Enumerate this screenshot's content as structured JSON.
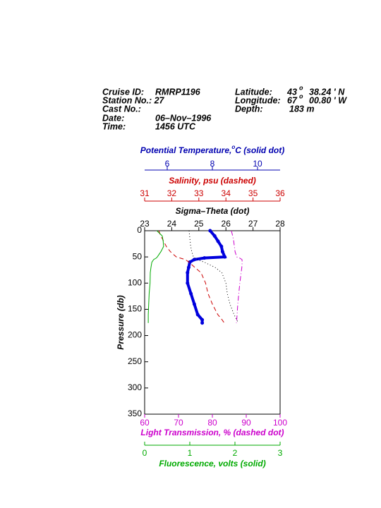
{
  "header": {
    "cruise_label": "Cruise ID:",
    "cruise": "RMRP1196",
    "station": "Station No.: 27",
    "cast_label": "Cast No.:",
    "date_label": "Date:",
    "date": "06–Nov–1996",
    "time_label": "Time:",
    "time": "1456 UTC",
    "lat_label": "Latitude:",
    "lat_deg": "43",
    "lat_sup": "o",
    "lat_min": "38.24 ' N",
    "lon_label": "Longitude:",
    "lon_deg": "67",
    "lon_sup": "o",
    "lon_min": "00.80 ' W",
    "depth_label": "Depth:",
    "depth": "183 m"
  },
  "chart_data": {
    "type": "profile",
    "ylabel": "Pressure (db)",
    "ylim": [
      0,
      350
    ],
    "yticks": [
      0,
      50,
      100,
      150,
      200,
      250,
      300,
      350
    ],
    "pressure": [
      0,
      10,
      20,
      30,
      40,
      50,
      52,
      55,
      60,
      70,
      80,
      100,
      120,
      140,
      160,
      170,
      176
    ],
    "axes": [
      {
        "title": [
          "Potential Temperature,",
          "o",
          "C (solid dot)"
        ],
        "color": "#0000b0",
        "line_color": "#0000dd",
        "dash": "solid-dot",
        "xlim": [
          5,
          11
        ],
        "xticks": [
          6,
          8,
          10
        ],
        "values": [
          7.9,
          8.1,
          8.25,
          8.4,
          8.45,
          8.55,
          7.65,
          7.2,
          7.0,
          6.95,
          6.9,
          6.9,
          7.05,
          7.2,
          7.35,
          7.55,
          7.55
        ]
      },
      {
        "title": "Salinity, psu  (dashed)",
        "color": "#cc0000",
        "line_color": "#cc0000",
        "dash": "dashed",
        "xlim": [
          31,
          36
        ],
        "xticks": [
          31,
          32,
          33,
          34,
          35,
          36
        ],
        "values": [
          31.52,
          31.6,
          31.7,
          31.8,
          31.95,
          32.17,
          32.3,
          32.5,
          32.64,
          32.85,
          33.08,
          33.25,
          33.34,
          33.5,
          33.7,
          33.86,
          33.94
        ]
      },
      {
        "title": "Sigma–Theta (dot)",
        "color": "#000000",
        "line_color": "#000000",
        "dash": "dot",
        "xlim": [
          23,
          28
        ],
        "xticks": [
          23,
          24,
          25,
          26,
          27,
          28
        ],
        "values": [
          24.64,
          24.66,
          24.68,
          24.7,
          24.74,
          24.8,
          24.85,
          24.95,
          25.2,
          25.6,
          25.85,
          26.0,
          26.05,
          26.15,
          26.3,
          26.4,
          26.46
        ]
      },
      {
        "title": "Light Transmission, % (dashed dot)",
        "color": "#cc00cc",
        "line_color": "#cc00cc",
        "dash": "dashdot",
        "xlim": [
          60,
          100
        ],
        "xticks": [
          60,
          70,
          80,
          90,
          100
        ],
        "values": [
          85.6,
          86.0,
          86.3,
          86.5,
          86.7,
          87.2,
          88.0,
          88.75,
          88.8,
          88.7,
          88.5,
          88.1,
          87.8,
          87.5,
          87.3,
          87.2,
          87.1
        ]
      },
      {
        "title": "Fluorescence, volts (solid)",
        "color": "#00aa00",
        "line_color": "#00aa00",
        "dash": "solid",
        "xlim": [
          0,
          3
        ],
        "xticks": [
          0,
          1,
          2,
          3
        ],
        "values": [
          0.27,
          0.39,
          0.41,
          0.42,
          0.36,
          0.28,
          0.26,
          0.2,
          0.16,
          0.14,
          0.125,
          0.12,
          0.1,
          0.09,
          0.08,
          0.08,
          0.08
        ]
      }
    ]
  }
}
